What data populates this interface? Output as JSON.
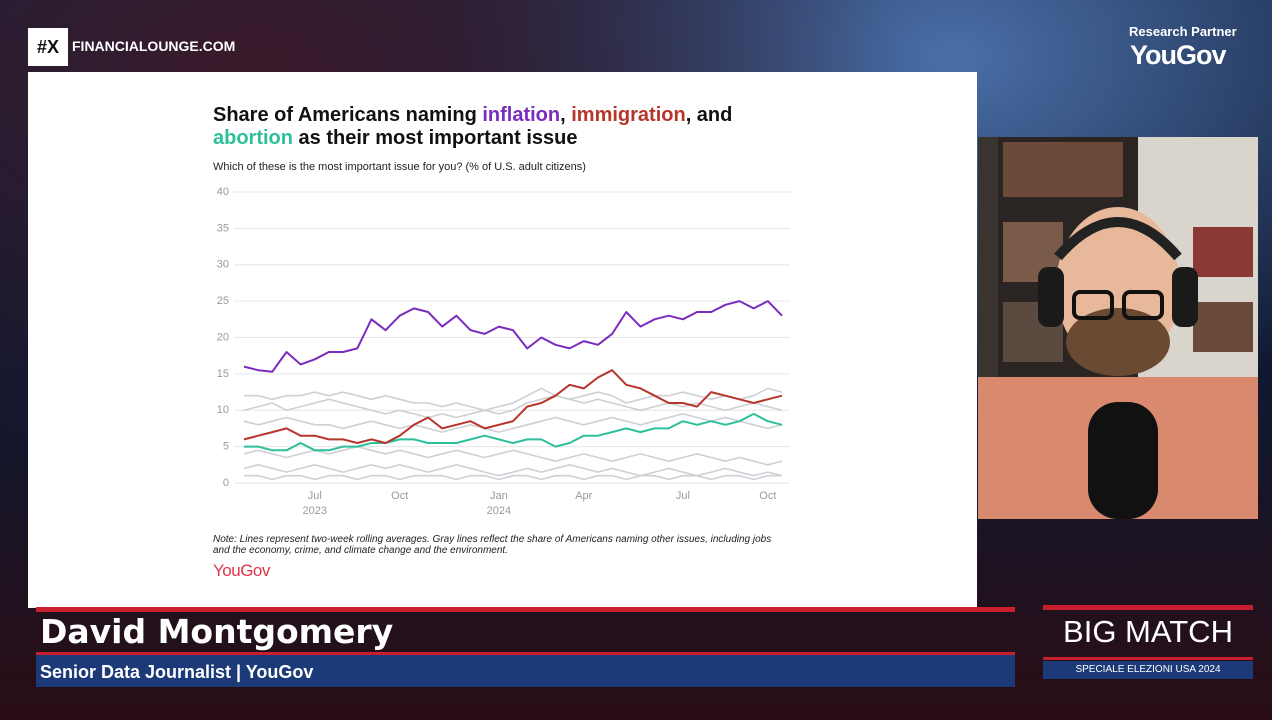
{
  "overlay": {
    "brand_mark": "#X",
    "brand_name": "FINANCIALOUNGE.COM",
    "partner_label": "Research Partner",
    "partner_name": "YouGov",
    "speaker_name": "David Montgomery",
    "speaker_role": "Senior Data Journalist | YouGov",
    "show_title": "BIG MATCH",
    "show_subtitle": "SPECIALE ELEZIONI USA 2024"
  },
  "chart_data": {
    "type": "line",
    "title_lines": [
      [
        {
          "text": "Share of Americans naming "
        },
        {
          "text": "inflation",
          "color": "#7b2cbf"
        },
        {
          "text": ", "
        },
        {
          "text": "immigration",
          "color": "#b8352b"
        },
        {
          "text": ", and"
        }
      ],
      [
        {
          "text": "abortion",
          "color": "#2ebf9b"
        },
        {
          "text": " as their most important issue"
        }
      ]
    ],
    "subtitle": "Which of these is the most important issue for you? (% of U.S. adult citizens)",
    "note": "Note: Lines represent two-week rolling averages. Gray lines reflect the share of Americans naming other issues, including jobs and the economy, crime, and climate change and the environment.",
    "source": "YouGov",
    "categories": [
      null,
      null,
      null,
      null,
      null,
      "Jul",
      null,
      null,
      null,
      null,
      null,
      "Oct",
      null,
      null,
      null,
      null,
      null,
      null,
      "Jan",
      null,
      null,
      null,
      null,
      null,
      "Apr",
      null,
      null,
      null,
      null,
      null,
      null,
      "Jul",
      null,
      null,
      null,
      null,
      null,
      "Oct",
      null
    ],
    "category_years": [
      null,
      null,
      null,
      null,
      null,
      "2023",
      null,
      null,
      null,
      null,
      null,
      null,
      null,
      null,
      null,
      null,
      null,
      null,
      "2024",
      null,
      null,
      null,
      null,
      null,
      null,
      null,
      null,
      null,
      null,
      null,
      null,
      null,
      null,
      null,
      null,
      null,
      null,
      null,
      null
    ],
    "ylim": [
      0,
      40
    ],
    "yticks": [
      0,
      5,
      10,
      15,
      20,
      25,
      30,
      35,
      40
    ],
    "grid": true,
    "series": [
      {
        "color": "#cfd0d6",
        "values": [
          12,
          12,
          11.5,
          12,
          12,
          12.5,
          12,
          12.5,
          12,
          11.5,
          12,
          11.5,
          11,
          11,
          10.5,
          11,
          10.5,
          10,
          10.5,
          11,
          12,
          13,
          12,
          11.5,
          12,
          12.5,
          12,
          11,
          11.5,
          12,
          12,
          12.5,
          12,
          11.5,
          12,
          11.5,
          12,
          13,
          12.5
        ]
      },
      {
        "color": "#cfd0d6",
        "values": [
          10,
          10.5,
          11,
          10,
          10.5,
          11,
          11.5,
          11,
          10.5,
          10,
          9.5,
          10,
          9.5,
          9,
          9.5,
          9,
          9.5,
          10,
          9.5,
          10,
          11,
          11.5,
          12,
          11.5,
          11,
          11.5,
          11,
          10.5,
          10,
          10.5,
          11,
          10.5,
          11,
          10.5,
          10,
          10.5,
          11,
          10.5,
          10
        ]
      },
      {
        "color": "#cfd0d6",
        "values": [
          8.5,
          8,
          8.5,
          9,
          8.5,
          8,
          8,
          7.5,
          8,
          8.5,
          8,
          7.5,
          8,
          7.5,
          7,
          7.5,
          8,
          7.5,
          7,
          7.5,
          8,
          8.5,
          9,
          8.5,
          8,
          8.5,
          9,
          8.5,
          8,
          8.5,
          9,
          9.5,
          9,
          8.5,
          9,
          8.5,
          8,
          7.5,
          8
        ]
      },
      {
        "color": "#cfd0d6",
        "values": [
          4,
          4.5,
          4,
          3.5,
          4,
          4.5,
          4,
          4.5,
          5,
          4.5,
          4,
          4.5,
          4,
          3.5,
          4,
          4.5,
          4,
          3.5,
          4,
          4.5,
          4,
          3.5,
          3,
          3.5,
          4,
          3.5,
          3,
          3.5,
          4,
          3.5,
          3,
          3.5,
          4,
          3.5,
          3,
          3.5,
          3,
          2.5,
          3
        ]
      },
      {
        "color": "#cfd0d6",
        "values": [
          2,
          2.5,
          2,
          1.5,
          2,
          2.5,
          2,
          1.5,
          2,
          2.5,
          2,
          2.5,
          2,
          1.5,
          2,
          2.5,
          2,
          1.5,
          1,
          1.5,
          2,
          1.5,
          2,
          2.5,
          2,
          1.5,
          2,
          1.5,
          1,
          1.5,
          2,
          1.5,
          1,
          1.5,
          2,
          1.5,
          1,
          1.5,
          1
        ]
      },
      {
        "color": "#cfd0d6",
        "values": [
          1,
          1,
          0.5,
          1,
          1,
          0.5,
          1,
          1,
          0.5,
          1,
          1,
          0.5,
          1,
          1,
          1,
          0.5,
          1,
          1,
          0.5,
          1,
          1,
          0.5,
          1,
          1,
          0.5,
          1,
          1,
          0.5,
          1,
          1,
          0.5,
          1,
          1,
          0.5,
          1,
          1,
          0.5,
          1,
          1
        ]
      },
      {
        "name": "abortion",
        "color": "#2ebf9b",
        "values": [
          5,
          5,
          4.5,
          4.5,
          5.5,
          4.5,
          4.5,
          5,
          5,
          5.5,
          5.5,
          6,
          6,
          5.5,
          5.5,
          5.5,
          6,
          6.5,
          6,
          5.5,
          6,
          6,
          5,
          5.5,
          6.5,
          6.5,
          7,
          7.5,
          7,
          7.5,
          7.5,
          8.5,
          8,
          8.5,
          8,
          8.5,
          9.5,
          8.5,
          8
        ]
      },
      {
        "name": "immigration",
        "color": "#b8352b",
        "values": [
          6,
          6.5,
          7,
          7.5,
          6.5,
          6.5,
          6,
          6,
          5.5,
          6,
          5.5,
          6.5,
          8,
          9,
          7.5,
          8,
          8.5,
          7.5,
          8,
          8.5,
          10.5,
          11,
          12,
          13.5,
          13,
          14.5,
          15.5,
          13.5,
          13,
          12,
          11,
          11,
          10.5,
          12.5,
          12,
          11.5,
          11,
          11.5,
          12
        ]
      },
      {
        "name": "inflation",
        "color": "#7b2cbf",
        "values": [
          16,
          15.5,
          15.3,
          18,
          16.3,
          17,
          18,
          18,
          18.5,
          22.5,
          21,
          23,
          24,
          23.5,
          21.5,
          23,
          21,
          20.5,
          21.5,
          21,
          18.5,
          20,
          19,
          18.5,
          19.5,
          19,
          20.5,
          23.5,
          21.5,
          22.5,
          23,
          22.5,
          23.5,
          23.5,
          24.5,
          25,
          24,
          25,
          23
        ]
      }
    ]
  }
}
